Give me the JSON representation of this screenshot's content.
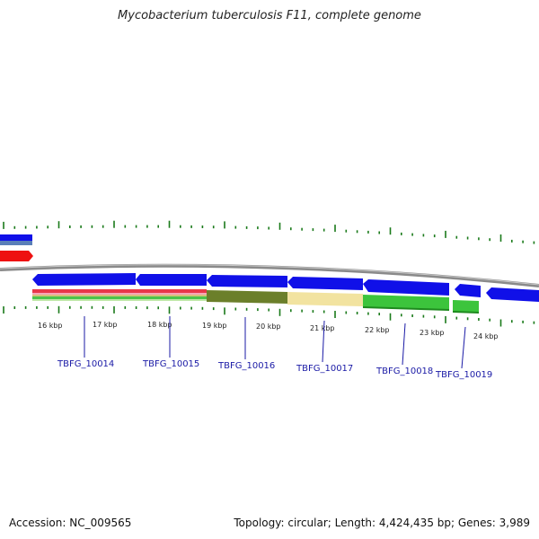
{
  "title": "Mycobacterium tuberculosis F11, complete genome",
  "footer": {
    "accession": "Accession: NC_009565",
    "stats": "Topology: circular; Length: 4,424,435 bp; Genes: 3,989"
  },
  "scale_labels": [
    "16 kbp",
    "17 kbp",
    "18 kbp",
    "19 kbp",
    "20 kbp",
    "21 kbp",
    "22 kbp",
    "23 kbp",
    "24 kbp"
  ],
  "gene_labels": [
    "TBFG_10014",
    "TBFG_10015",
    "TBFG_10016",
    "TBFG_10017",
    "TBFG_10018",
    "TBFG_10019"
  ],
  "colors": {
    "gene_forward": "#1010e8",
    "gene_highlight": "#ee1111",
    "backbone": "#8a8a8a",
    "tick": "#1a7a1a",
    "label_line": "#1a1aa6",
    "feature_olive": "#6b7f2a",
    "feature_tan": "#f2e3a0",
    "feature_green": "#3cc43c"
  }
}
